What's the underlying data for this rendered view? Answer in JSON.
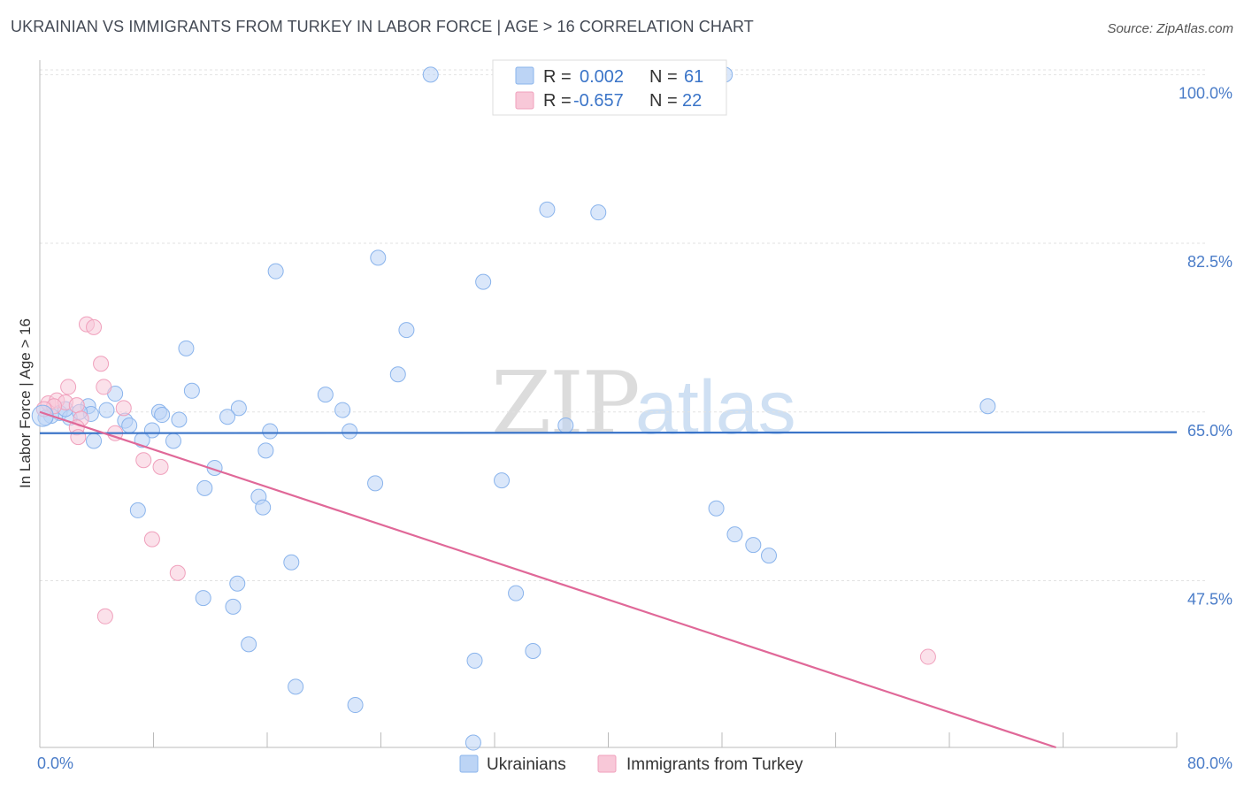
{
  "title": "UKRAINIAN VS IMMIGRANTS FROM TURKEY IN LABOR FORCE | AGE > 16 CORRELATION CHART",
  "source": "Source: ZipAtlas.com",
  "watermark": {
    "part1": "ZIP",
    "part2": "atlas"
  },
  "stats": [
    {
      "r_label": "R =",
      "r_value": "0.002",
      "n_label": "N =",
      "n_value": "61",
      "color": "#8ab4ec",
      "fill": "#bcd4f5"
    },
    {
      "r_label": "R =",
      "r_value": "-0.657",
      "n_label": "N =",
      "n_value": "22",
      "color": "#f0a0bc",
      "fill": "#f8c8d8"
    }
  ],
  "legend": [
    {
      "label": "Ukrainians",
      "color": "#8ab4ec",
      "fill": "#bcd4f5"
    },
    {
      "label": "Immigrants from Turkey",
      "color": "#f0a0bc",
      "fill": "#f8c8d8"
    }
  ],
  "chart_data": {
    "type": "scatter",
    "title": "UKRAINIAN VS IMMIGRANTS FROM TURKEY IN LABOR FORCE | AGE > 16 CORRELATION CHART",
    "xlabel": "",
    "ylabel": "In Labor Force | Age > 16",
    "xlim": [
      0,
      80
    ],
    "ylim": [
      30.2,
      101.5
    ],
    "x_tick_labels": [
      {
        "value": 0,
        "label": "0.0%"
      },
      {
        "value": 80,
        "label": "80.0%"
      }
    ],
    "y_ticks": [
      {
        "value": 100,
        "label": "100.0%"
      },
      {
        "value": 82.5,
        "label": "82.5%"
      },
      {
        "value": 65,
        "label": "65.0%"
      },
      {
        "value": 47.5,
        "label": "47.5%"
      }
    ],
    "x_minor_ticks": [
      8,
      16,
      24,
      32,
      40,
      48,
      56,
      64,
      72,
      80
    ],
    "grid": true,
    "series": [
      {
        "name": "Ukrainians",
        "color": "#8ab4ec",
        "fill": "#bcd4f5",
        "line_color": "#3a74c8",
        "trend": {
          "x0": 0,
          "y0": 62.8,
          "x1": 80,
          "y1": 62.9
        },
        "points": [
          [
            27.5,
            100
          ],
          [
            48.2,
            100
          ],
          [
            35.7,
            86.0
          ],
          [
            39.3,
            85.7
          ],
          [
            23.8,
            81.0
          ],
          [
            16.6,
            79.6
          ],
          [
            31.2,
            78.5
          ],
          [
            25.8,
            73.5
          ],
          [
            10.3,
            71.6
          ],
          [
            25.2,
            68.9
          ],
          [
            10.7,
            67.2
          ],
          [
            20.1,
            66.8
          ],
          [
            5.3,
            66.9
          ],
          [
            21.3,
            65.2
          ],
          [
            14.0,
            65.4
          ],
          [
            3.4,
            65.6
          ],
          [
            4.7,
            65.2
          ],
          [
            8.4,
            65.0
          ],
          [
            8.6,
            64.7
          ],
          [
            13.2,
            64.5
          ],
          [
            1.4,
            64.9
          ],
          [
            3.6,
            64.8
          ],
          [
            0.8,
            64.6
          ],
          [
            2.1,
            64.4
          ],
          [
            6.0,
            64.1
          ],
          [
            9.8,
            64.2
          ],
          [
            6.3,
            63.6
          ],
          [
            7.9,
            63.1
          ],
          [
            16.2,
            63.0
          ],
          [
            21.8,
            63.0
          ],
          [
            37.0,
            63.6
          ],
          [
            66.7,
            65.6
          ],
          [
            3.8,
            62.0
          ],
          [
            7.2,
            62.1
          ],
          [
            9.4,
            62.0
          ],
          [
            15.9,
            61.0
          ],
          [
            12.3,
            59.2
          ],
          [
            32.5,
            57.9
          ],
          [
            23.6,
            57.6
          ],
          [
            11.6,
            57.1
          ],
          [
            15.4,
            56.2
          ],
          [
            15.7,
            55.1
          ],
          [
            6.9,
            54.8
          ],
          [
            47.6,
            55.0
          ],
          [
            48.9,
            52.3
          ],
          [
            50.2,
            51.2
          ],
          [
            51.3,
            50.1
          ],
          [
            17.7,
            49.4
          ],
          [
            13.9,
            47.2
          ],
          [
            33.5,
            46.2
          ],
          [
            11.5,
            45.7
          ],
          [
            13.6,
            44.8
          ],
          [
            14.7,
            40.9
          ],
          [
            34.7,
            40.2
          ],
          [
            30.6,
            39.2
          ],
          [
            18.0,
            36.5
          ],
          [
            22.2,
            34.6
          ],
          [
            30.5,
            30.7
          ],
          [
            0.4,
            64.4
          ],
          [
            1.8,
            65.3
          ],
          [
            2.8,
            65.0
          ]
        ]
      },
      {
        "name": "Immigrants from Turkey",
        "color": "#f0a0bc",
        "fill": "#f8c8d8",
        "line_color": "#e06898",
        "trend": {
          "x0": 0,
          "y0": 65.0,
          "x1": 71.5,
          "y1": 30.2
        },
        "points": [
          [
            3.3,
            74.1
          ],
          [
            3.8,
            73.8
          ],
          [
            4.3,
            70.0
          ],
          [
            4.5,
            67.6
          ],
          [
            2.0,
            67.6
          ],
          [
            0.6,
            65.9
          ],
          [
            1.2,
            66.2
          ],
          [
            1.8,
            66.0
          ],
          [
            2.6,
            65.7
          ],
          [
            5.9,
            65.4
          ],
          [
            1.0,
            65.6
          ],
          [
            0.3,
            65.3
          ],
          [
            2.9,
            64.3
          ],
          [
            2.6,
            63.4
          ],
          [
            5.3,
            62.8
          ],
          [
            2.7,
            62.4
          ],
          [
            7.3,
            60.0
          ],
          [
            8.5,
            59.3
          ],
          [
            7.9,
            51.8
          ],
          [
            9.7,
            48.3
          ],
          [
            4.6,
            43.8
          ],
          [
            62.5,
            39.6
          ]
        ]
      }
    ]
  }
}
